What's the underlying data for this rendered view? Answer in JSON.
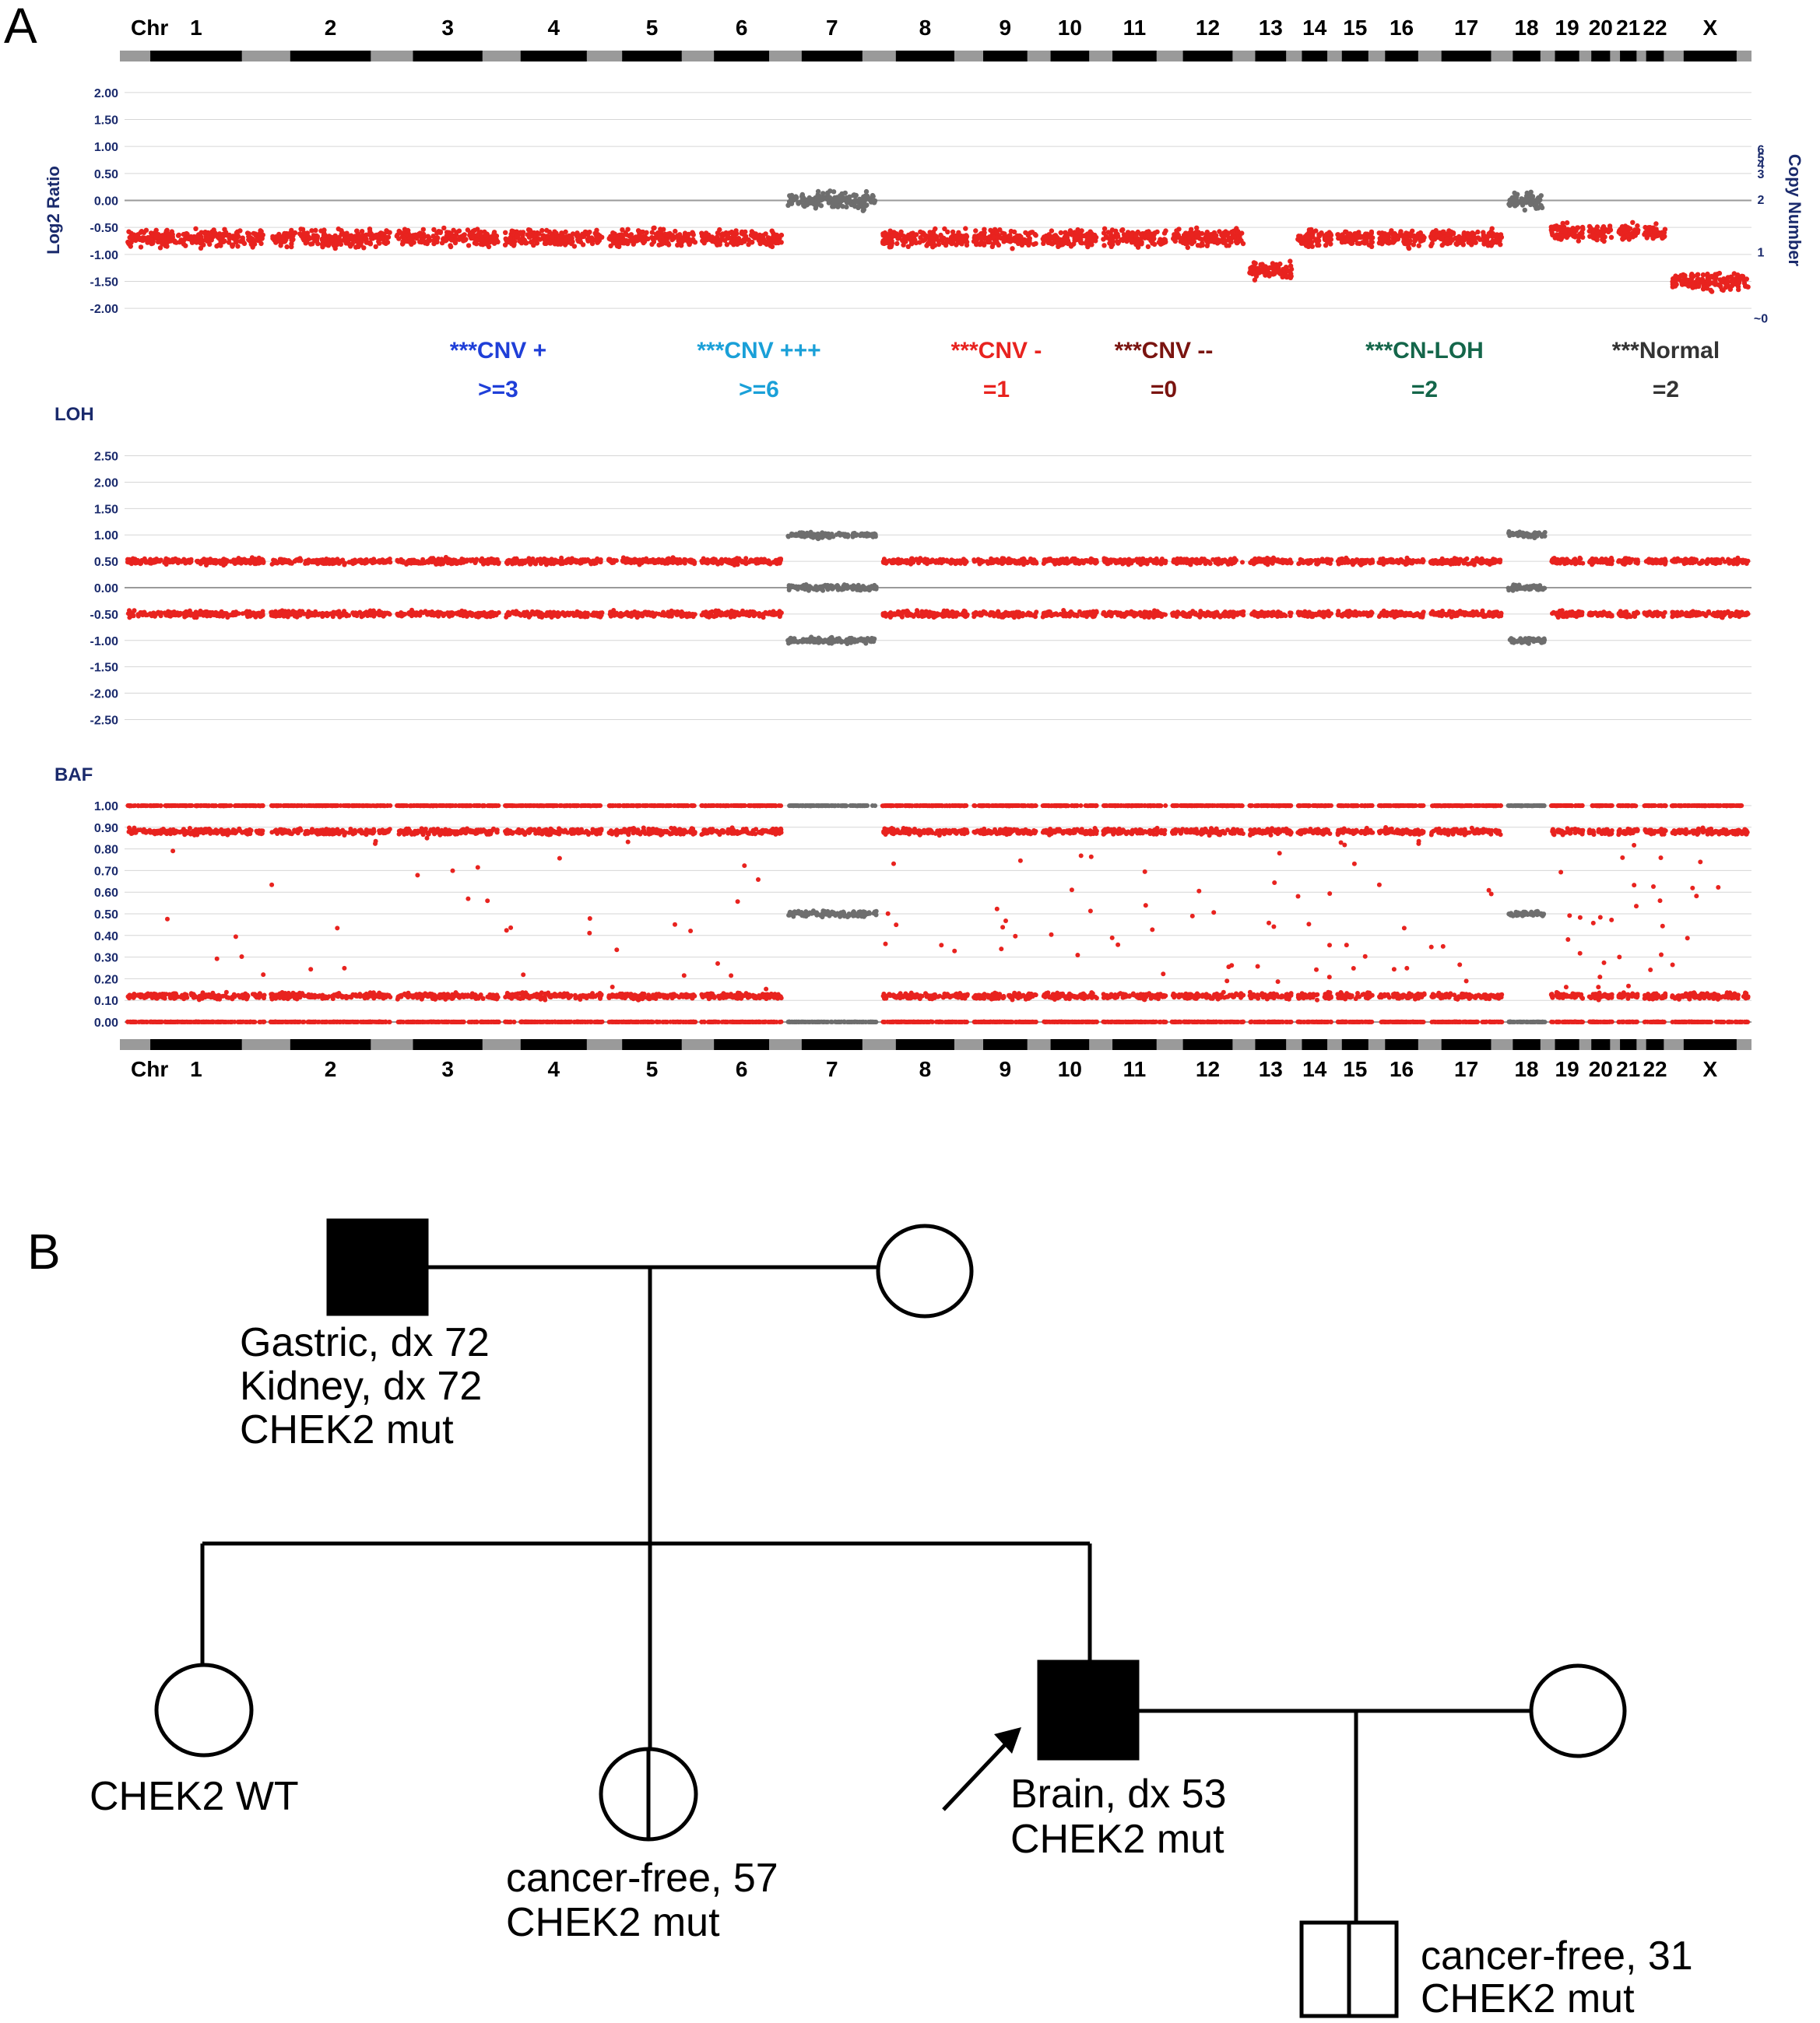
{
  "panel_a": {
    "letter": "A",
    "chromosomes": [
      "1",
      "2",
      "3",
      "4",
      "5",
      "6",
      "7",
      "8",
      "9",
      "10",
      "11",
      "12",
      "13",
      "14",
      "15",
      "16",
      "17",
      "18",
      "19",
      "20",
      "21",
      "22",
      "X"
    ],
    "chr_title": "Chr",
    "log2": {
      "ylabel": "Log2 Ratio",
      "y2label": "Copy Number",
      "ticks": [
        "2.00",
        "1.50",
        "1.00",
        "0.50",
        "0.00",
        "-0.50",
        "-1.00",
        "-1.50",
        "-2.00"
      ],
      "cn_ticks": [
        "6",
        "5",
        "4",
        "3",
        "2",
        "1",
        "~0"
      ],
      "ylim": [
        -2.2,
        2.2
      ]
    },
    "loh": {
      "title": "LOH",
      "ticks": [
        "2.50",
        "2.00",
        "1.50",
        "1.00",
        "0.50",
        "0.00",
        "-0.50",
        "-1.00",
        "-1.50",
        "-2.00",
        "-2.50"
      ],
      "ylim": [
        -2.7,
        2.7
      ]
    },
    "baf": {
      "title": "BAF",
      "ticks": [
        "1.00",
        "0.90",
        "0.80",
        "0.70",
        "0.60",
        "0.50",
        "0.40",
        "0.30",
        "0.20",
        "0.10",
        "0.00"
      ],
      "ylim": [
        0,
        1
      ]
    },
    "legend": [
      {
        "line1": "***CNV +",
        "line2": ">=3",
        "color": "#1f3fd8"
      },
      {
        "line1": "***CNV +++",
        "line2": ">=6",
        "color": "#1aa0d8"
      },
      {
        "line1": "***CNV -",
        "line2": "=1",
        "color": "#e8231f"
      },
      {
        "line1": "***CNV --",
        "line2": "=0",
        "color": "#7a1410"
      },
      {
        "line1": "***CN-LOH",
        "line2": "=2",
        "color": "#14664a"
      },
      {
        "line1": "***Normal",
        "line2": "=2",
        "color": "#333333"
      }
    ]
  },
  "chart_data": {
    "type": "scatter",
    "chromosomes": [
      "1",
      "2",
      "3",
      "4",
      "5",
      "6",
      "7",
      "8",
      "9",
      "10",
      "11",
      "12",
      "13",
      "14",
      "15",
      "16",
      "17",
      "18",
      "19",
      "20",
      "21",
      "22",
      "X"
    ],
    "log2_ratio_mean_by_chromosome": [
      -0.7,
      -0.7,
      -0.7,
      -0.7,
      -0.7,
      -0.7,
      0.0,
      -0.7,
      -0.7,
      -0.7,
      -0.7,
      -0.7,
      -1.3,
      -0.7,
      -0.7,
      -0.7,
      -0.7,
      0.0,
      -0.6,
      -0.6,
      -0.6,
      -0.6,
      -1.5
    ],
    "copy_number_state_by_chromosome": [
      "=1",
      "=1",
      "=1",
      "=1",
      "=1",
      "=1",
      "=2",
      "=1",
      "=1",
      "=1",
      "=1",
      "=1",
      "=1",
      "=1",
      "=1",
      "=1",
      "=1",
      "=2",
      "=1",
      "=1",
      "=1",
      "=1",
      "=1"
    ],
    "baf_bands_red": [
      0.0,
      0.12,
      0.88,
      1.0
    ],
    "baf_bands_gray": [
      0.0,
      0.5,
      1.0
    ],
    "loh_bands_red": [
      -0.5,
      0.5
    ],
    "loh_bands_gray": [
      -1.0,
      0.0,
      1.0
    ],
    "series": [
      {
        "name": "***CNV -",
        "color": "#e8231f"
      },
      {
        "name": "***Normal",
        "color": "#333333"
      }
    ]
  },
  "panel_b": {
    "letter": "B",
    "grandfather": [
      "Gastric, dx 72",
      "Kidney, dx 72",
      "CHEK2 mut"
    ],
    "daughter1": [
      "CHEK2 WT"
    ],
    "daughter2": [
      "cancer-free, 57",
      "CHEK2 mut"
    ],
    "proband": [
      "Brain, dx 53",
      "CHEK2 mut"
    ],
    "grandson": [
      "cancer-free, 31",
      "CHEK2 mut"
    ]
  },
  "colors": {
    "red": "#e8231f",
    "gray": "#6e6e6e",
    "dark_red": "#7a1410",
    "axis_text": "#1a2a6c"
  }
}
